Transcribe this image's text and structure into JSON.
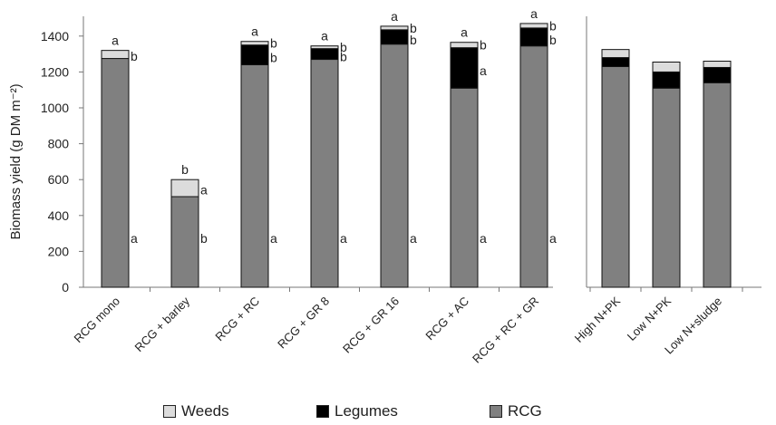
{
  "chart_data": {
    "type": "bar",
    "stacked": true,
    "ylabel": "Biomass yield (g DM m⁻²)",
    "ylim": [
      0,
      1500
    ],
    "yticks": [
      0,
      200,
      400,
      600,
      800,
      1000,
      1200,
      1400
    ],
    "grid": false,
    "legend_position": "bottom",
    "series": [
      {
        "name": "RCG",
        "color": "#808080"
      },
      {
        "name": "Legumes",
        "color": "#000000"
      },
      {
        "name": "Weeds",
        "color": "#dcdcdc"
      }
    ],
    "panels": [
      {
        "categories": [
          "RCG mono",
          "RCG + barley",
          "RCG + RC",
          "RCG + GR 8",
          "RCG + GR 16",
          "RCG + AC",
          "RCG + RC + GR"
        ],
        "RCG": [
          1275,
          505,
          1240,
          1270,
          1355,
          1110,
          1345
        ],
        "Legumes": [
          0,
          0,
          110,
          60,
          80,
          225,
          100
        ],
        "Weeds": [
          45,
          95,
          20,
          15,
          20,
          30,
          25
        ],
        "letters": {
          "RCG": [
            "a",
            "b",
            "a",
            "a",
            "a",
            "a",
            "a"
          ],
          "Legumes": [
            "",
            "",
            "b",
            "b",
            "b",
            "a",
            "b"
          ],
          "Weeds": [
            "b",
            "a",
            "b",
            "b",
            "b",
            "b",
            "b"
          ],
          "Total": [
            "a",
            "b",
            "a",
            "a",
            "a",
            "a",
            "a"
          ]
        }
      },
      {
        "categories": [
          "High N+PK",
          "Low N+PK",
          "Low N+sludge"
        ],
        "RCG": [
          1230,
          1110,
          1140
        ],
        "Legumes": [
          50,
          90,
          85
        ],
        "Weeds": [
          45,
          55,
          35
        ]
      }
    ]
  }
}
